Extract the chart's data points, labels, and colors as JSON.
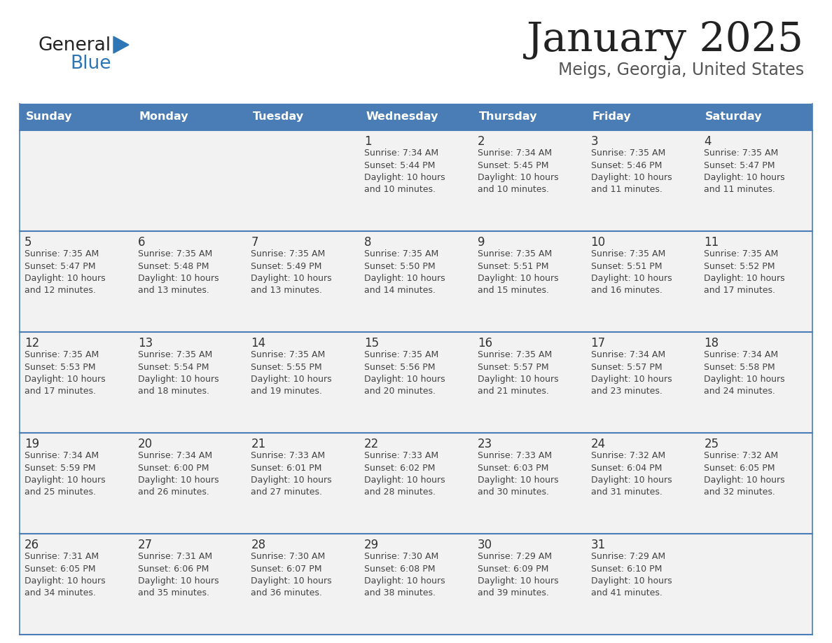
{
  "title": "January 2025",
  "subtitle": "Meigs, Georgia, United States",
  "header_color": "#4A7DB5",
  "header_text_color": "#FFFFFF",
  "day_names": [
    "Sunday",
    "Monday",
    "Tuesday",
    "Wednesday",
    "Thursday",
    "Friday",
    "Saturday"
  ],
  "title_color": "#222222",
  "subtitle_color": "#555555",
  "cell_bg": "#F2F2F2",
  "day_num_color": "#333333",
  "info_color": "#444444",
  "line_color": "#4A7DB5",
  "logo_general_color": "#222222",
  "logo_blue_color": "#2E75B6",
  "logo_triangle_color": "#2E75B6",
  "calendar": [
    [
      null,
      null,
      null,
      {
        "day": 1,
        "sunrise": "7:34 AM",
        "sunset": "5:44 PM",
        "daylight": "10 hours and 10 minutes."
      },
      {
        "day": 2,
        "sunrise": "7:34 AM",
        "sunset": "5:45 PM",
        "daylight": "10 hours and 10 minutes."
      },
      {
        "day": 3,
        "sunrise": "7:35 AM",
        "sunset": "5:46 PM",
        "daylight": "10 hours and 11 minutes."
      },
      {
        "day": 4,
        "sunrise": "7:35 AM",
        "sunset": "5:47 PM",
        "daylight": "10 hours and 11 minutes."
      }
    ],
    [
      {
        "day": 5,
        "sunrise": "7:35 AM",
        "sunset": "5:47 PM",
        "daylight": "10 hours and 12 minutes."
      },
      {
        "day": 6,
        "sunrise": "7:35 AM",
        "sunset": "5:48 PM",
        "daylight": "10 hours and 13 minutes."
      },
      {
        "day": 7,
        "sunrise": "7:35 AM",
        "sunset": "5:49 PM",
        "daylight": "10 hours and 13 minutes."
      },
      {
        "day": 8,
        "sunrise": "7:35 AM",
        "sunset": "5:50 PM",
        "daylight": "10 hours and 14 minutes."
      },
      {
        "day": 9,
        "sunrise": "7:35 AM",
        "sunset": "5:51 PM",
        "daylight": "10 hours and 15 minutes."
      },
      {
        "day": 10,
        "sunrise": "7:35 AM",
        "sunset": "5:51 PM",
        "daylight": "10 hours and 16 minutes."
      },
      {
        "day": 11,
        "sunrise": "7:35 AM",
        "sunset": "5:52 PM",
        "daylight": "10 hours and 17 minutes."
      }
    ],
    [
      {
        "day": 12,
        "sunrise": "7:35 AM",
        "sunset": "5:53 PM",
        "daylight": "10 hours and 17 minutes."
      },
      {
        "day": 13,
        "sunrise": "7:35 AM",
        "sunset": "5:54 PM",
        "daylight": "10 hours and 18 minutes."
      },
      {
        "day": 14,
        "sunrise": "7:35 AM",
        "sunset": "5:55 PM",
        "daylight": "10 hours and 19 minutes."
      },
      {
        "day": 15,
        "sunrise": "7:35 AM",
        "sunset": "5:56 PM",
        "daylight": "10 hours and 20 minutes."
      },
      {
        "day": 16,
        "sunrise": "7:35 AM",
        "sunset": "5:57 PM",
        "daylight": "10 hours and 21 minutes."
      },
      {
        "day": 17,
        "sunrise": "7:34 AM",
        "sunset": "5:57 PM",
        "daylight": "10 hours and 23 minutes."
      },
      {
        "day": 18,
        "sunrise": "7:34 AM",
        "sunset": "5:58 PM",
        "daylight": "10 hours and 24 minutes."
      }
    ],
    [
      {
        "day": 19,
        "sunrise": "7:34 AM",
        "sunset": "5:59 PM",
        "daylight": "10 hours and 25 minutes."
      },
      {
        "day": 20,
        "sunrise": "7:34 AM",
        "sunset": "6:00 PM",
        "daylight": "10 hours and 26 minutes."
      },
      {
        "day": 21,
        "sunrise": "7:33 AM",
        "sunset": "6:01 PM",
        "daylight": "10 hours and 27 minutes."
      },
      {
        "day": 22,
        "sunrise": "7:33 AM",
        "sunset": "6:02 PM",
        "daylight": "10 hours and 28 minutes."
      },
      {
        "day": 23,
        "sunrise": "7:33 AM",
        "sunset": "6:03 PM",
        "daylight": "10 hours and 30 minutes."
      },
      {
        "day": 24,
        "sunrise": "7:32 AM",
        "sunset": "6:04 PM",
        "daylight": "10 hours and 31 minutes."
      },
      {
        "day": 25,
        "sunrise": "7:32 AM",
        "sunset": "6:05 PM",
        "daylight": "10 hours and 32 minutes."
      }
    ],
    [
      {
        "day": 26,
        "sunrise": "7:31 AM",
        "sunset": "6:05 PM",
        "daylight": "10 hours and 34 minutes."
      },
      {
        "day": 27,
        "sunrise": "7:31 AM",
        "sunset": "6:06 PM",
        "daylight": "10 hours and 35 minutes."
      },
      {
        "day": 28,
        "sunrise": "7:30 AM",
        "sunset": "6:07 PM",
        "daylight": "10 hours and 36 minutes."
      },
      {
        "day": 29,
        "sunrise": "7:30 AM",
        "sunset": "6:08 PM",
        "daylight": "10 hours and 38 minutes."
      },
      {
        "day": 30,
        "sunrise": "7:29 AM",
        "sunset": "6:09 PM",
        "daylight": "10 hours and 39 minutes."
      },
      {
        "day": 31,
        "sunrise": "7:29 AM",
        "sunset": "6:10 PM",
        "daylight": "10 hours and 41 minutes."
      },
      null
    ]
  ]
}
